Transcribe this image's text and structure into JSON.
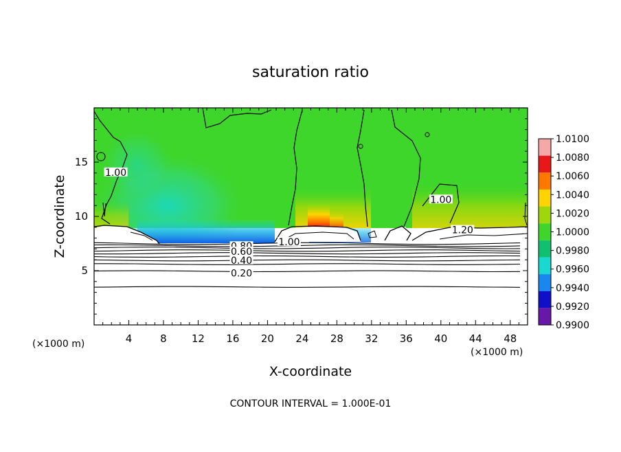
{
  "chart_data": {
    "type": "heatmap",
    "title": "saturation ratio",
    "xlabel": "X-coordinate",
    "ylabel": "Z-coordinate",
    "x_unit": "(×1000 m)",
    "y_unit": "(×1000 m)",
    "xlim": [
      0,
      50
    ],
    "ylim": [
      0,
      20
    ],
    "x_ticks": [
      4,
      8,
      12,
      16,
      20,
      24,
      28,
      32,
      36,
      40,
      44,
      48
    ],
    "y_ticks": [
      5,
      10,
      15
    ],
    "footer": "CONTOUR INTERVAL = 1.000E-01",
    "colorbar": {
      "labels": [
        "1.0100",
        "1.0080",
        "1.0060",
        "1.0040",
        "1.0020",
        "1.0000",
        "0.9980",
        "0.9960",
        "0.9940",
        "0.9920",
        "0.9900"
      ],
      "colors": [
        "#f4a8a8",
        "#e81818",
        "#ff7800",
        "#ffd400",
        "#9ed80a",
        "#3ed62a",
        "#10c070",
        "#18d8d0",
        "#1888f0",
        "#1010c8",
        "#6818a8"
      ]
    },
    "contour_labels": [
      {
        "text": "1.00",
        "x": 2.5,
        "z": 14.0
      },
      {
        "text": "1.00",
        "x": 40.0,
        "z": 11.5
      },
      {
        "text": "1.00",
        "x": 22.5,
        "z": 7.6
      },
      {
        "text": "1.20",
        "x": 42.5,
        "z": 8.7
      },
      {
        "text": "0.80",
        "x": 17.0,
        "z": 7.2
      },
      {
        "text": "0.60",
        "x": 17.0,
        "z": 6.7
      },
      {
        "text": "0.40",
        "x": 17.0,
        "z": 5.9
      },
      {
        "text": "0.20",
        "x": 17.0,
        "z": 4.7
      }
    ],
    "contour_levels_below_cloudbase_z": [
      3.5,
      4.95,
      5.6,
      5.95,
      6.3,
      6.6,
      6.85,
      7.1,
      7.3,
      7.5
    ]
  }
}
